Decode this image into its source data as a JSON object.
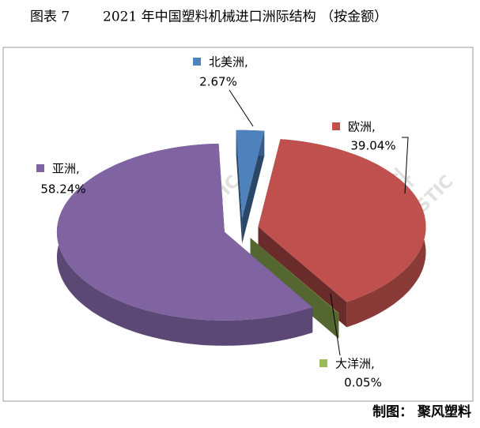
{
  "chart_data": {
    "type": "pie3d",
    "figure_label": "图表 7",
    "title": "2021 年中国塑料机械进口洲际结构 （按金额）",
    "categories": [
      "北美洲,",
      "欧洲,",
      "大洋洲,",
      "亚洲,"
    ],
    "values": [
      2.67,
      39.04,
      0.05,
      58.24
    ],
    "value_labels": [
      "2.67%",
      "39.04%",
      "0.05%",
      "58.24%"
    ],
    "colors": [
      "#4f81bd",
      "#c0504d",
      "#9bbb59",
      "#8064a2"
    ],
    "watermark": {
      "name": "聚风塑料",
      "en": "JUFENG PLASTIC"
    },
    "credit": "制图： 聚风塑料"
  }
}
